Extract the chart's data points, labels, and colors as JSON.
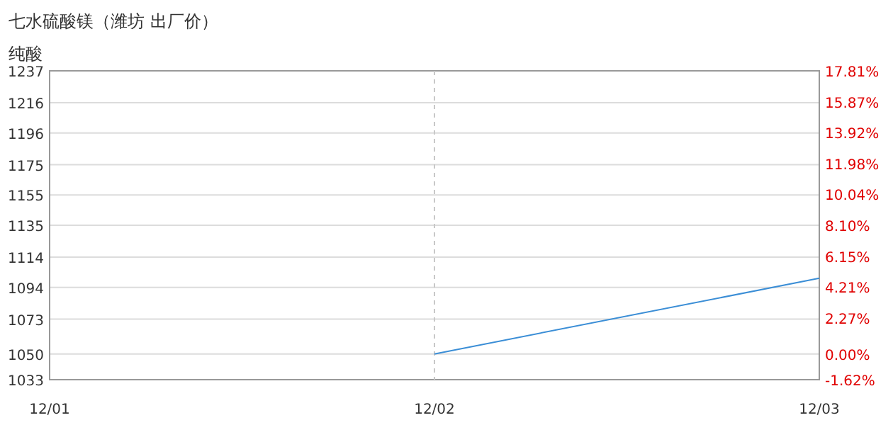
{
  "chart_data": {
    "type": "line",
    "title": "七水硫酸镁（潍坊 出厂价）",
    "subtitle": "纯酸",
    "categories": [
      "12/01",
      "12/02",
      "12/03"
    ],
    "series": [
      {
        "color": "#3b8ed6",
        "values": [
          null,
          1050,
          1100
        ]
      }
    ],
    "ylim": [
      1033,
      1237
    ],
    "yticks": [
      1033,
      1050,
      1073,
      1094,
      1114,
      1135,
      1155,
      1175,
      1196,
      1216,
      1237
    ],
    "y2lim": [
      -1.62,
      17.81
    ],
    "y2ticks": [
      {
        "value": -1.62,
        "label": "-1.62%"
      },
      {
        "value": 0,
        "label": "0.00%"
      },
      {
        "value": 2.27,
        "label": "2.27%"
      },
      {
        "value": 4.21,
        "label": "4.21%"
      },
      {
        "value": 6.15,
        "label": "6.15%"
      },
      {
        "value": 8.1,
        "label": "8.10%"
      },
      {
        "value": 10.04,
        "label": "10.04%"
      },
      {
        "value": 11.98,
        "label": "11.98%"
      },
      {
        "value": 13.92,
        "label": "13.92%"
      },
      {
        "value": 15.87,
        "label": "15.87%"
      },
      {
        "value": 17.81,
        "label": "17.81%"
      }
    ],
    "ref_lines": [
      {
        "axis": "x",
        "value": "12/02",
        "color": "#c8c8c8",
        "line_style": "dashed"
      }
    ],
    "grid": "y",
    "marker": "none",
    "line_style": "solid"
  }
}
